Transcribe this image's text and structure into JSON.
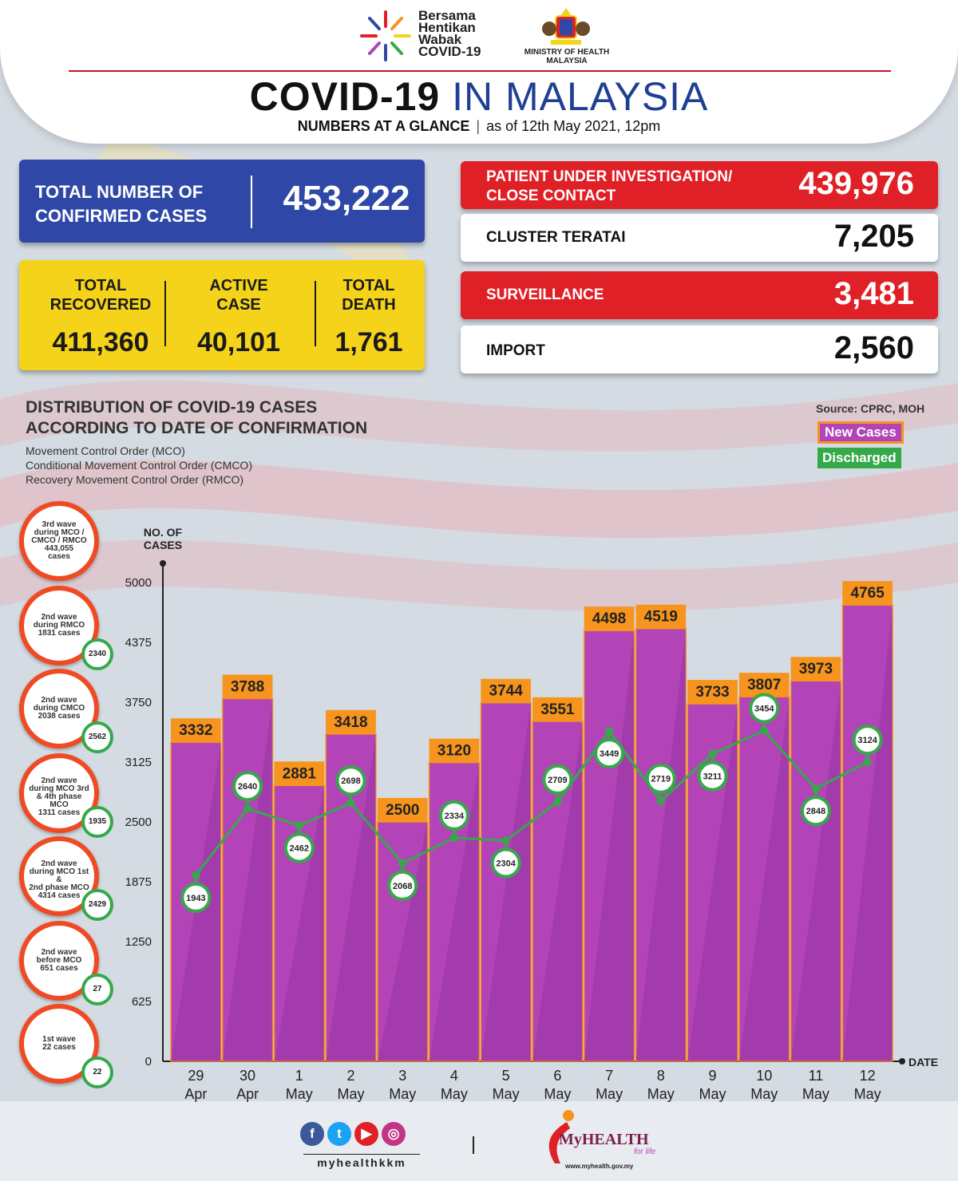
{
  "header": {
    "campaign_lines": [
      "Bersama",
      "Hentikan",
      "Wabak",
      "COVID-19"
    ],
    "ministry_lines": [
      "MINISTRY OF HEALTH",
      "MALAYSIA"
    ],
    "title_part1": "COVID-19",
    "title_part2": "IN MALAYSIA",
    "subtitle_bold": "NUMBERS AT A GLANCE",
    "subtitle_date": "as of 12th May 2021, 12pm"
  },
  "summary": {
    "total_label_1": "TOTAL NUMBER OF",
    "total_label_2": "CONFIRMED CASES",
    "total_value": "453,222",
    "recovered_label_1": "TOTAL",
    "recovered_label_2": "RECOVERED",
    "recovered_value": "411,360",
    "active_label_1": "ACTIVE",
    "active_label_2": "CASE",
    "active_value": "40,101",
    "death_label_1": "TOTAL",
    "death_label_2": "DEATH",
    "death_value": "1,761"
  },
  "side_stats": [
    {
      "label_1": "PATIENT UNDER INVESTIGATION/",
      "label_2": "CLOSE CONTACT",
      "value": "439,976",
      "style": "red"
    },
    {
      "label_1": "CLUSTER TERATAI",
      "label_2": "",
      "value": "7,205",
      "style": "white"
    },
    {
      "label_1": "SURVEILLANCE",
      "label_2": "",
      "value": "3,481",
      "style": "red"
    },
    {
      "label_1": "IMPORT",
      "label_2": "",
      "value": "2,560",
      "style": "white"
    }
  ],
  "distribution": {
    "title_1": "DISTRIBUTION OF COVID-19 CASES",
    "title_2": "ACCORDING TO DATE OF CONFIRMATION",
    "abbr_1": "Movement Control Order (MCO)",
    "abbr_2": "Conditional Movement Control Order (CMCO)",
    "abbr_3": "Recovery Movement Control Order (RMCO)",
    "source": "Source: CPRC, MOH"
  },
  "waves": [
    {
      "lines": [
        "3rd wave",
        "during MCO /",
        "CMCO / RMCO",
        "443,055",
        "cases"
      ],
      "badge": ""
    },
    {
      "lines": [
        "2nd wave",
        "during RMCO",
        "1831 cases"
      ],
      "badge": "2340"
    },
    {
      "lines": [
        "2nd wave",
        "during CMCO",
        "2038 cases"
      ],
      "badge": "2562"
    },
    {
      "lines": [
        "2nd wave",
        "during MCO 3rd",
        "& 4th phase MCO",
        "1311 cases"
      ],
      "badge": "1935"
    },
    {
      "lines": [
        "2nd wave",
        "during MCO 1st &",
        "2nd phase MCO",
        "4314 cases"
      ],
      "badge": "2429"
    },
    {
      "lines": [
        "2nd wave",
        "before MCO",
        "651 cases"
      ],
      "badge": "27"
    },
    {
      "lines": [
        "1st wave",
        "22 cases"
      ],
      "badge": "22"
    }
  ],
  "chart_data": {
    "type": "bar",
    "ylabel": "NO. OF CASES",
    "xlabel": "DATE",
    "ylim": [
      0,
      5000
    ],
    "yticks": [
      0,
      625,
      1250,
      1875,
      2500,
      3125,
      3750,
      4375,
      5000
    ],
    "categories": [
      [
        "29",
        "Apr"
      ],
      [
        "30",
        "Apr"
      ],
      [
        "1",
        "May"
      ],
      [
        "2",
        "May"
      ],
      [
        "3",
        "May"
      ],
      [
        "4",
        "May"
      ],
      [
        "5",
        "May"
      ],
      [
        "6",
        "May"
      ],
      [
        "7",
        "May"
      ],
      [
        "8",
        "May"
      ],
      [
        "9",
        "May"
      ],
      [
        "10",
        "May"
      ],
      [
        "11",
        "May"
      ],
      [
        "12",
        "May"
      ]
    ],
    "series": [
      {
        "name": "New Cases",
        "type": "bar",
        "color": "#b344b8",
        "values": [
          3332,
          3788,
          2881,
          3418,
          2500,
          3120,
          3744,
          3551,
          4498,
          4519,
          3733,
          3807,
          3973,
          4765
        ]
      },
      {
        "name": "Discharged",
        "type": "line",
        "color": "#35a94a",
        "values": [
          1943,
          2640,
          2462,
          2698,
          2068,
          2334,
          2304,
          2709,
          3449,
          2719,
          3211,
          3454,
          2848,
          3124
        ]
      }
    ]
  },
  "footer": {
    "social_handle": "myhealthkkm",
    "brand": "MyHEALTH",
    "tagline": "for life",
    "url": "www.myhealth.gov.my"
  },
  "colors": {
    "primary_blue": "#2f48a8",
    "red": "#e02027",
    "yellow": "#f5d31a",
    "purple": "#b344b8",
    "orange": "#f7941d",
    "green": "#35a94a"
  }
}
